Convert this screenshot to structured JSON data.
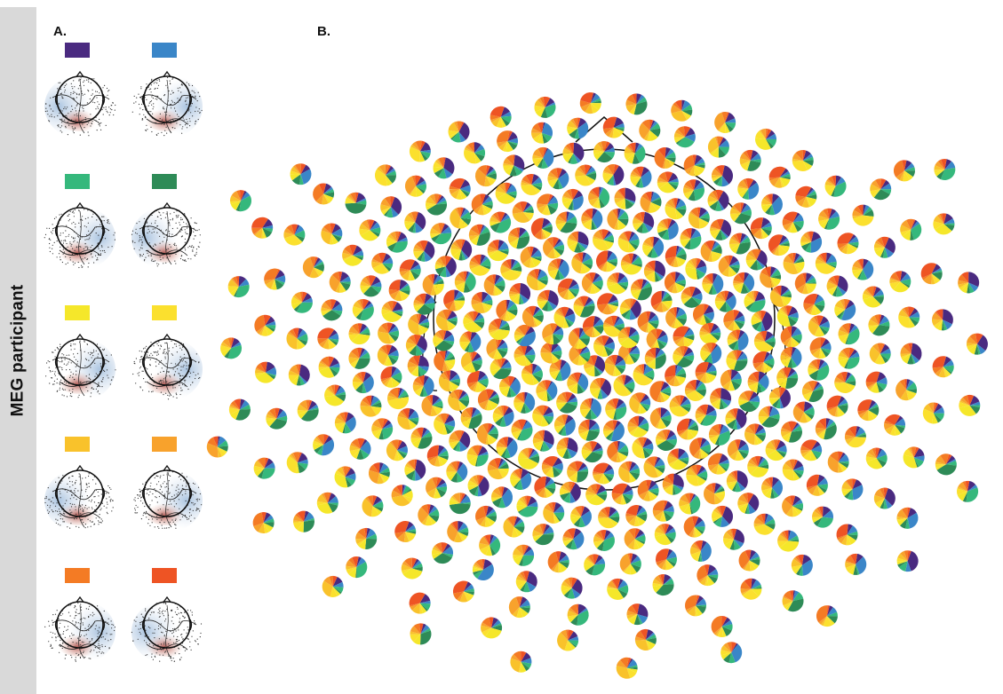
{
  "side_label": "MEG participant",
  "panel_a": {
    "letter": "A.",
    "topomaps": [
      {
        "id": "purple",
        "color": "#4a2a80"
      },
      {
        "id": "blue",
        "color": "#3a86c8"
      },
      {
        "id": "mint",
        "color": "#35b87c"
      },
      {
        "id": "green",
        "color": "#2e8b57"
      },
      {
        "id": "yellow1",
        "color": "#f5e72a"
      },
      {
        "id": "yellow2",
        "color": "#fbe02e"
      },
      {
        "id": "amber",
        "color": "#f9c22b"
      },
      {
        "id": "orange",
        "color": "#f8a22c"
      },
      {
        "id": "dark-orange",
        "color": "#f47b24"
      },
      {
        "id": "red-orange",
        "color": "#ee5424"
      }
    ]
  },
  "panel_b": {
    "letter": "B.",
    "pie_colors": [
      "#4a2a80",
      "#3a86c8",
      "#35b87c",
      "#2e8b57",
      "#f5e72a",
      "#fbe02e",
      "#f9c22b",
      "#f8a22c",
      "#f47b24",
      "#ee5424"
    ]
  }
}
